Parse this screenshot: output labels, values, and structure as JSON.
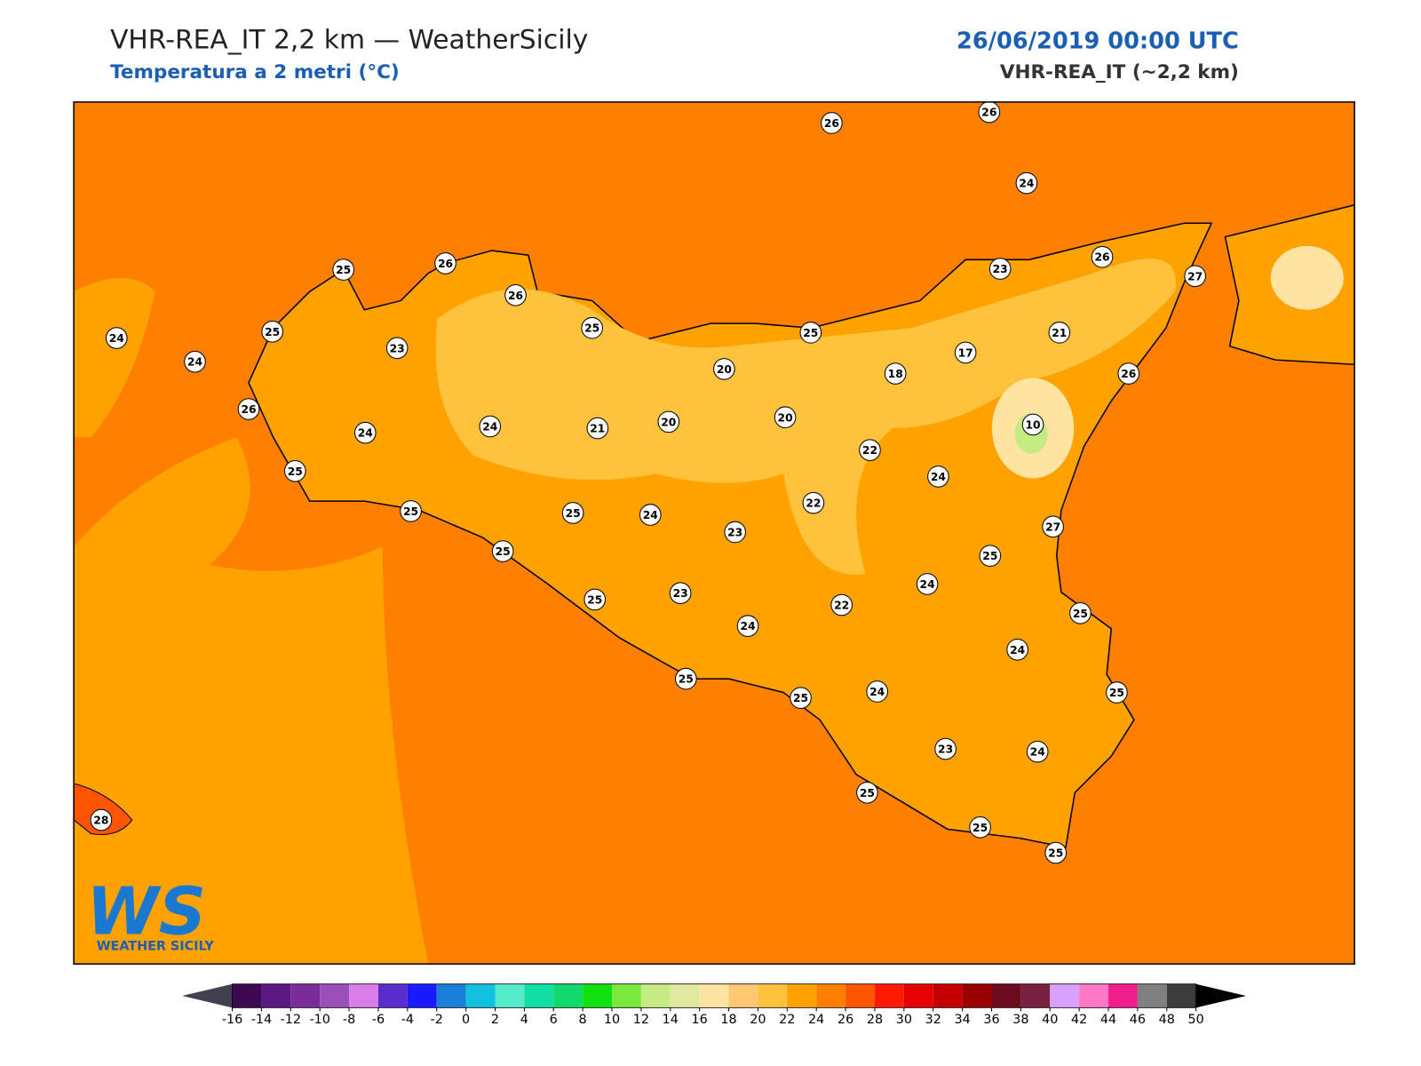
{
  "header": {
    "title": "VHR-REA_IT 2,2 km — WeatherSicily",
    "subtitle": "Temperatura a 2 metri (°C)",
    "datetime": "26/06/2019 00:00 UTC",
    "model": "VHR-REA_IT (~2,2 km)"
  },
  "stations": [
    26,
    26,
    24,
    25,
    26,
    26,
    24,
    25,
    23,
    25,
    25,
    23,
    26,
    27,
    21,
    17,
    18,
    20,
    24,
    26,
    24,
    24,
    21,
    20,
    20,
    26,
    10,
    22,
    24,
    25,
    25,
    25,
    24,
    23,
    22,
    27,
    25,
    25,
    24,
    25,
    23,
    22,
    25,
    24,
    24,
    25,
    25,
    24,
    25,
    23,
    24,
    25,
    25,
    25,
    28
  ],
  "colorbar": {
    "ticks": [
      -16,
      -14,
      -12,
      -10,
      -8,
      -6,
      -4,
      -2,
      0,
      2,
      4,
      6,
      8,
      10,
      12,
      14,
      16,
      18,
      20,
      22,
      24,
      26,
      28,
      30,
      32,
      34,
      36,
      38,
      40,
      42,
      44,
      46,
      48,
      50
    ],
    "colors": [
      "#3d0a52",
      "#5a1a82",
      "#7a2d9a",
      "#9b4fb8",
      "#d97de8",
      "#5a2ccc",
      "#1a1aff",
      "#1a7fd9",
      "#12c0e0",
      "#55eac9",
      "#12dfa3",
      "#11d96b",
      "#11e011",
      "#7ae83d",
      "#c4ec82",
      "#e0e8a0",
      "#ffe3a0",
      "#ffc870",
      "#ffc23d",
      "#ffa200",
      "#ff8000",
      "#ff5500",
      "#ff1a00",
      "#e60000",
      "#c40000",
      "#990000",
      "#6e0a1e",
      "#7a2040",
      "#d9a0ff",
      "#ff78c8",
      "#f01e8c",
      "#808080",
      "#3c3c3c"
    ],
    "under_color": "#404050",
    "over_color": "#000000"
  },
  "logo": {
    "mark": "WS",
    "text": "WEATHER SICILY"
  }
}
